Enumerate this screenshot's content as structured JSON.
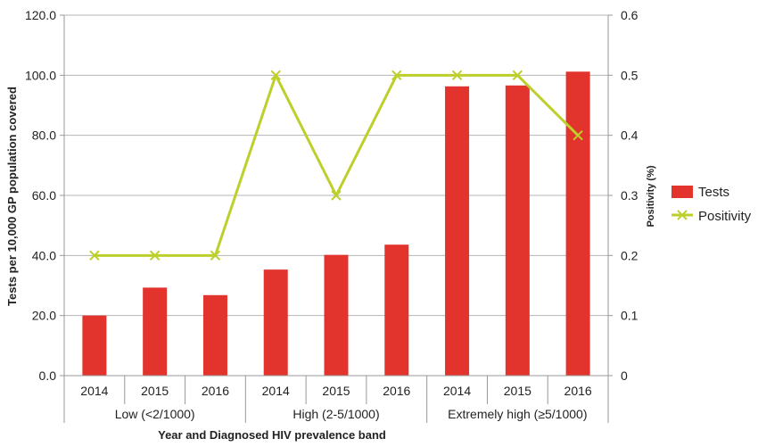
{
  "chart_data": {
    "type": "bar",
    "categories": [
      "2014",
      "2015",
      "2016",
      "2014",
      "2015",
      "2016",
      "2014",
      "2015",
      "2016"
    ],
    "groups": [
      {
        "label": "Low (<2/1000)",
        "count": 3
      },
      {
        "label": "High (2-5/1000)",
        "count": 3
      },
      {
        "label": "Extremely high (≥5/1000)",
        "count": 3
      }
    ],
    "series": [
      {
        "name": "Tests",
        "type": "bar",
        "axis": "left",
        "color": "#e2332c",
        "values": [
          20.0,
          29.3,
          26.8,
          35.3,
          40.2,
          43.6,
          96.3,
          96.6,
          101.2
        ]
      },
      {
        "name": "Positivity",
        "type": "line",
        "axis": "right",
        "color": "#bccf2a",
        "marker": "x",
        "values": [
          0.2,
          0.2,
          0.2,
          0.5,
          0.3,
          0.5,
          0.5,
          0.5,
          0.4
        ]
      }
    ],
    "xlabel": "Year and Diagnosed HIV prevalence band",
    "ylabel": "Tests per 10,000 GP population covered",
    "y2label": "Positivity (%)",
    "ylim": [
      0,
      120
    ],
    "y2lim": [
      0,
      0.6
    ],
    "yticks": [
      "0.0",
      "20.0",
      "40.0",
      "60.0",
      "80.0",
      "100.0",
      "120.0"
    ],
    "y2ticks": [
      "0",
      "0.1",
      "0.2",
      "0.3",
      "0.4",
      "0.5",
      "0.6"
    ],
    "grid": true,
    "legend_position": "right"
  }
}
